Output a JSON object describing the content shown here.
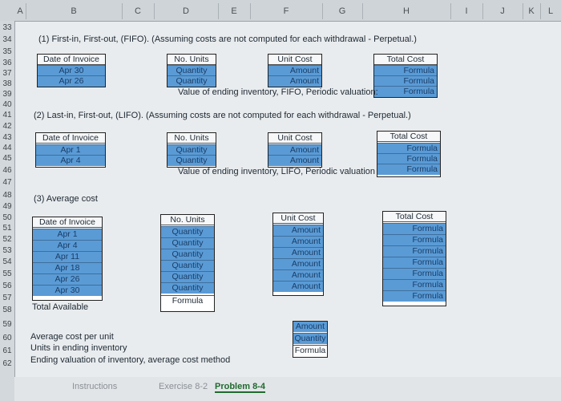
{
  "columns": [
    "A",
    "B",
    "C",
    "D",
    "E",
    "F",
    "G",
    "H",
    "I",
    "J",
    "K",
    "L"
  ],
  "rows": [
    "33",
    "34",
    "35",
    "36",
    "37",
    "38",
    "39",
    "40",
    "41",
    "42",
    "43",
    "44",
    "45",
    "46",
    "47",
    "48",
    "49",
    "50",
    "51",
    "52",
    "53",
    "54",
    "55",
    "56",
    "57",
    "58",
    "59",
    "60",
    "61",
    "62"
  ],
  "fifo": {
    "title": "(1) First-in, First-out, (FIFO). (Assuming costs are not computed for each withdrawal - Perpetual.)",
    "date_header": "Date of Invoice",
    "dates": [
      "Apr 30",
      "Apr 26"
    ],
    "units_header": "No. Units",
    "units": [
      "Quantity",
      "Quantity"
    ],
    "cost_header": "Unit Cost",
    "costs": [
      "Amount",
      "Amount"
    ],
    "total_header": "Total Cost",
    "totals": [
      "Formula",
      "Formula",
      "Formula"
    ],
    "valuation_label": "Value of ending inventory, FIFO, Periodic valuation:"
  },
  "lifo": {
    "title": "(2) Last-in, First-out, (LIFO). (Assuming costs are not computed for each withdrawal - Perpetual.)",
    "date_header": "Date of Invoice",
    "dates": [
      "Apr 1",
      "Apr 4"
    ],
    "units_header": "No. Units",
    "units": [
      "Quantity",
      "Quantity"
    ],
    "cost_header": "Unit Cost",
    "costs": [
      "Amount",
      "Amount"
    ],
    "total_header": "Total Cost",
    "totals": [
      "Formula",
      "Formula",
      "Formula"
    ],
    "valuation_label": "Value of ending inventory, LIFO, Periodic valuation"
  },
  "average": {
    "title": "(3) Average cost",
    "date_header": "Date of Invoice",
    "dates": [
      "Apr 1",
      "Apr 4",
      "Apr 11",
      "Apr 18",
      "Apr 26",
      "Apr 30"
    ],
    "total_available_label": "Total Available",
    "units_header": "No. Units",
    "units": [
      "Quantity",
      "Quantity",
      "Quantity",
      "Quantity",
      "Quantity",
      "Quantity",
      "Formula"
    ],
    "cost_header": "Unit Cost",
    "costs": [
      "Amount",
      "Amount",
      "Amount",
      "Amount",
      "Amount",
      "Amount"
    ],
    "total_header": "Total Cost",
    "totals": [
      "Formula",
      "Formula",
      "Formula",
      "Formula",
      "Formula",
      "Formula",
      "Formula"
    ],
    "avg_cost_label": "Average cost per unit",
    "units_ending_label": "Units in ending inventory",
    "ending_valuation_label": "Ending valuation of inventory, average cost method",
    "summary_cells": [
      "Amount",
      "Quantity",
      "Formula"
    ]
  },
  "sheet_tabs": [
    "Instructions",
    "Exercise 8-2",
    "Problem 8-4"
  ],
  "active_tab": "Problem 8-4",
  "colors": {
    "input_cell": "#5a9bd6",
    "sheet_bg": "#e9ecee",
    "active_tab": "#1f6b2e"
  }
}
